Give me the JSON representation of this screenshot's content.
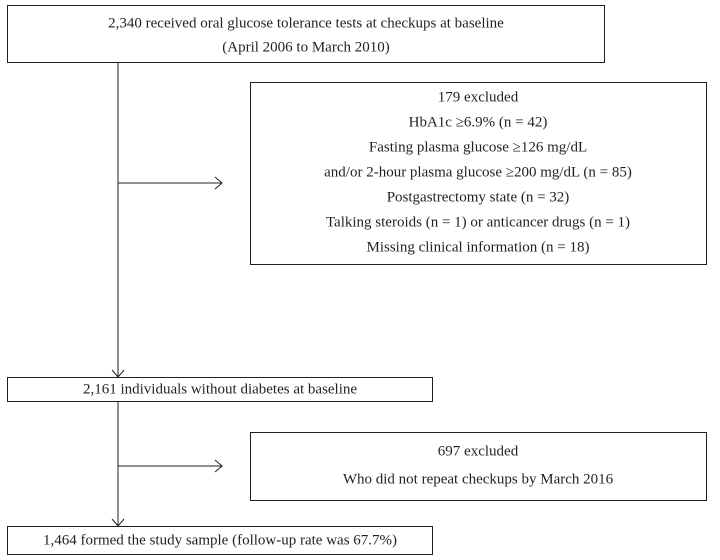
{
  "nodes": [
    {
      "lines": [
        "2,340 received oral glucose tolerance tests at checkups at baseline",
        "(April 2006 to March 2010)"
      ]
    },
    {
      "lines": [
        "179 excluded",
        "HbA1c ≥6.9% (n = 42)",
        "Fasting plasma glucose ≥126 mg/dL",
        "and/or 2-hour plasma glucose ≥200 mg/dL (n = 85)",
        "Postgastrectomy state (n = 32)",
        "Talking steroids (n = 1) or anticancer drugs (n = 1)",
        "Missing clinical information (n = 18)"
      ]
    },
    {
      "lines": [
        "2,161 individuals without diabetes at baseline"
      ]
    },
    {
      "lines": [
        "697 excluded",
        "Who did not repeat checkups by March 2016"
      ]
    },
    {
      "lines": [
        "1,464 formed the study sample (follow-up rate was 67.7%)"
      ]
    }
  ]
}
